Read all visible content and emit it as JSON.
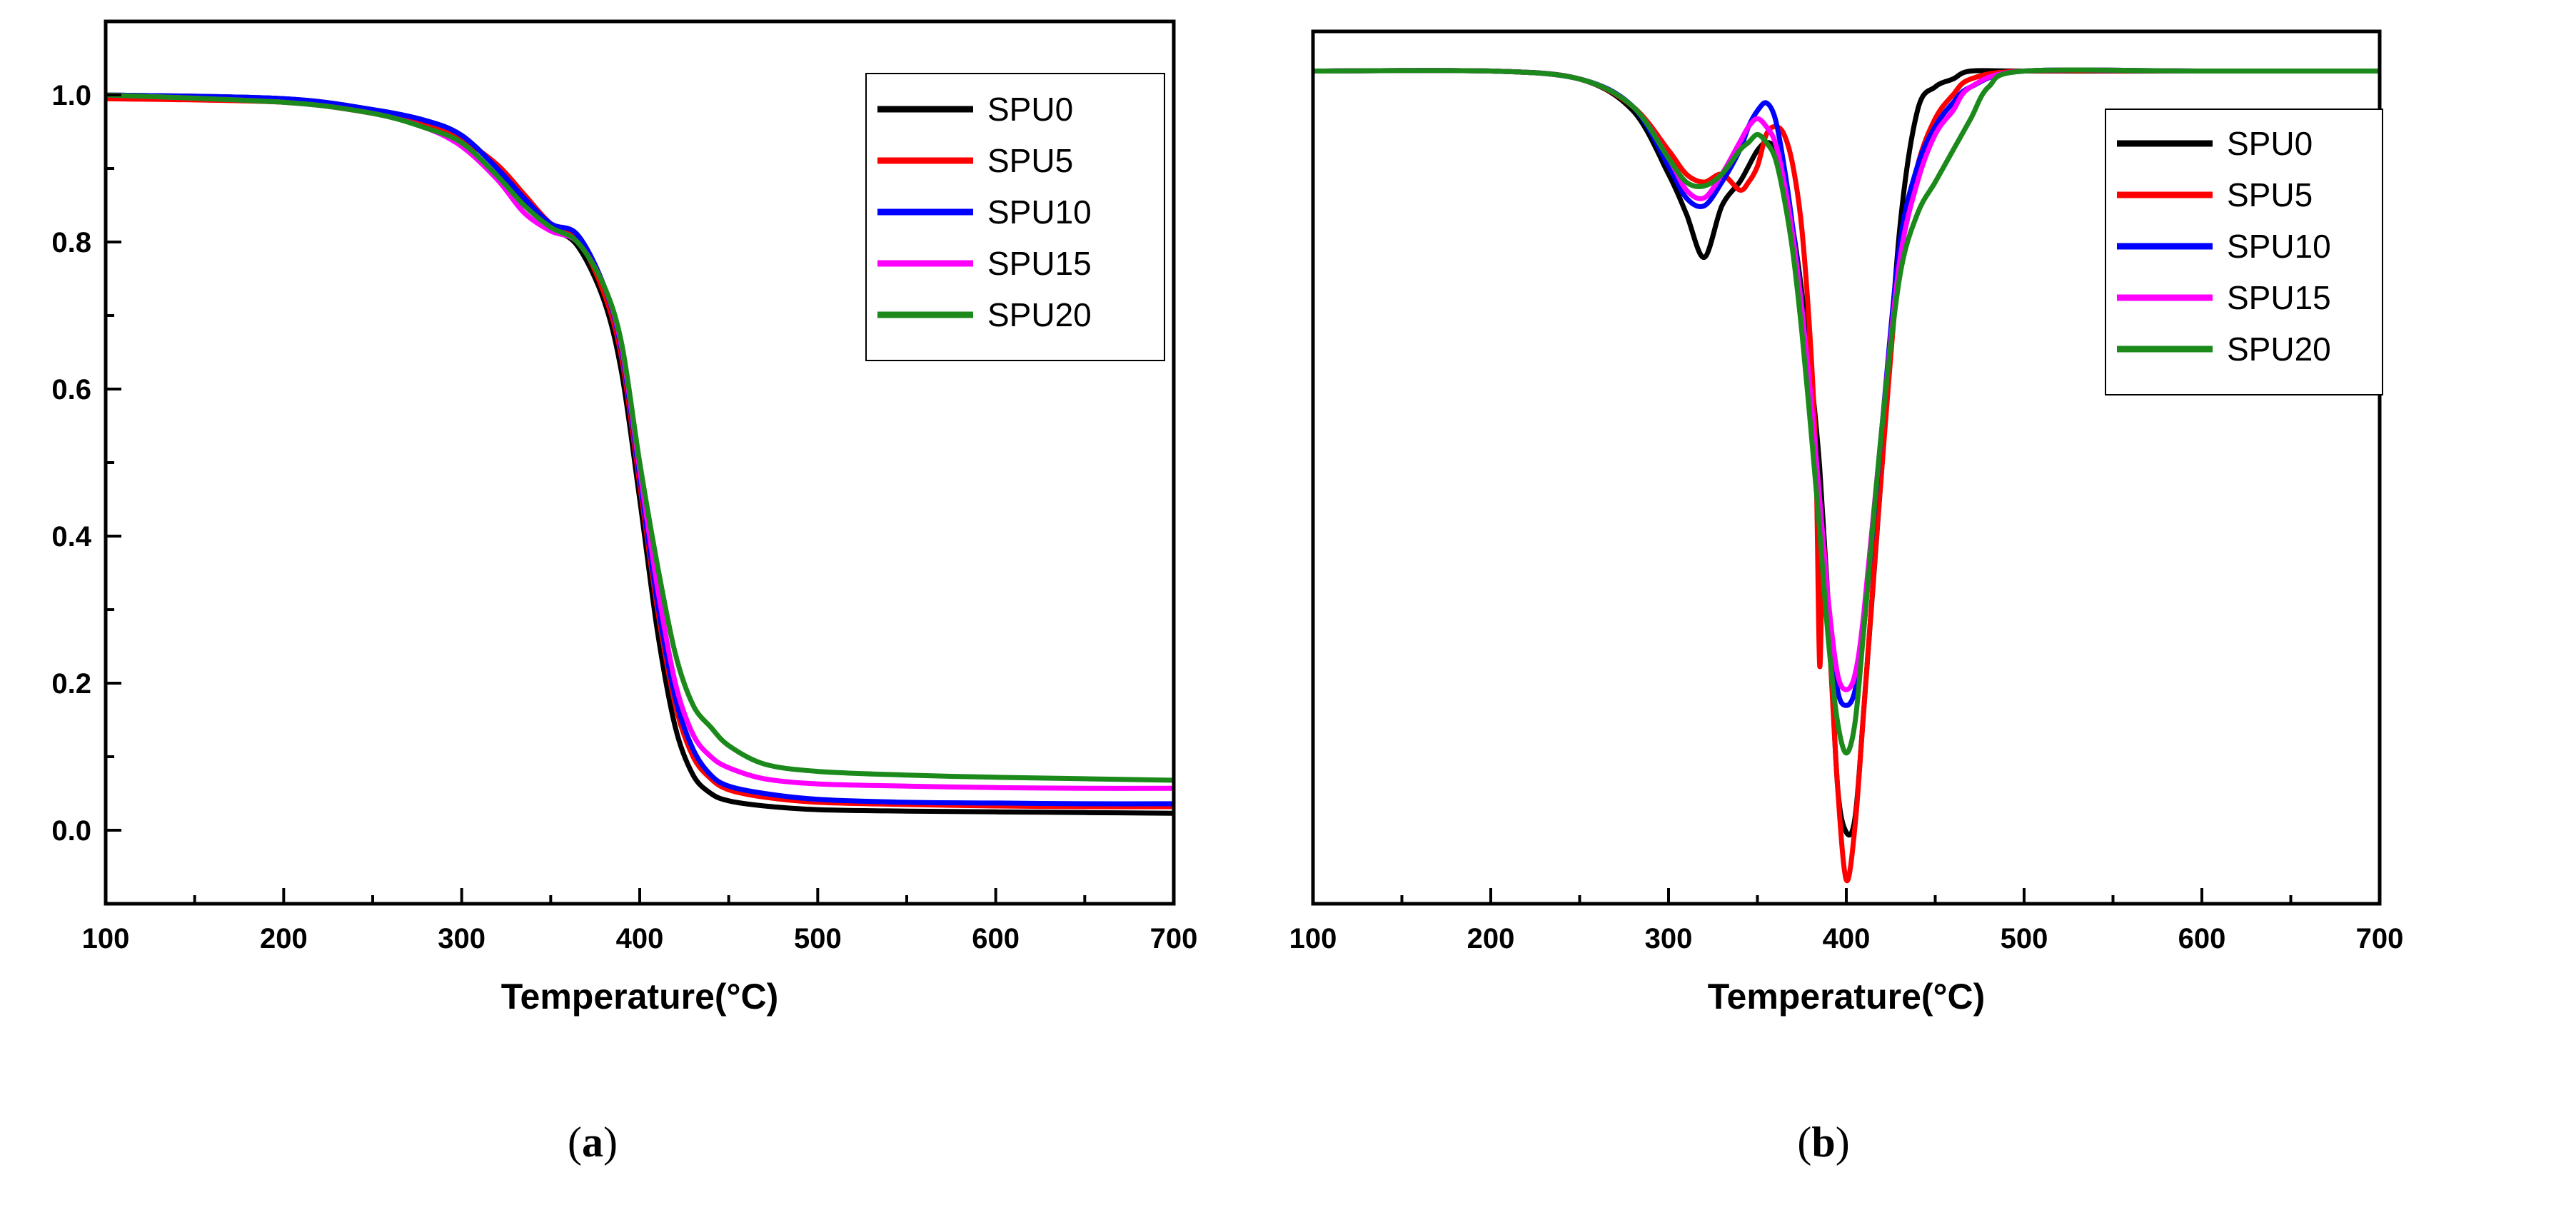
{
  "chart_data": [
    {
      "panel": "a",
      "caption": {
        "open": "(",
        "letter": "a",
        "close": ")"
      },
      "type": "line",
      "title": "",
      "xlabel": "Temperature(°C)",
      "ylabel": "",
      "xlim": [
        100,
        700
      ],
      "ylim": [
        -0.1,
        1.1
      ],
      "xticks": [
        100,
        200,
        300,
        400,
        500,
        600,
        700
      ],
      "yticks": [
        0.0,
        0.2,
        0.4,
        0.6,
        0.8,
        1.0
      ],
      "ytick_labels": [
        "0.0",
        "0.2",
        "0.4",
        "0.6",
        "0.8",
        "1.0"
      ],
      "show_yticks": true,
      "grid": false,
      "legend_position": "top-right",
      "series": [
        {
          "name": "SPU0",
          "color": "#000000",
          "x": [
            100,
            200,
            250,
            280,
            300,
            320,
            335,
            350,
            365,
            380,
            390,
            400,
            410,
            420,
            430,
            440,
            450,
            470,
            500,
            550,
            600,
            650,
            700
          ],
          "y": [
            1.0,
            0.995,
            0.98,
            0.965,
            0.945,
            0.9,
            0.855,
            0.82,
            0.795,
            0.72,
            0.62,
            0.45,
            0.27,
            0.14,
            0.075,
            0.05,
            0.04,
            0.033,
            0.028,
            0.026,
            0.025,
            0.024,
            0.023
          ]
        },
        {
          "name": "SPU5",
          "color": "#ff0000",
          "x": [
            100,
            200,
            250,
            280,
            300,
            320,
            335,
            350,
            365,
            380,
            390,
            400,
            410,
            420,
            430,
            440,
            450,
            470,
            500,
            550,
            600,
            650,
            700
          ],
          "y": [
            0.995,
            0.99,
            0.975,
            0.96,
            0.94,
            0.905,
            0.865,
            0.825,
            0.805,
            0.73,
            0.64,
            0.47,
            0.3,
            0.17,
            0.1,
            0.07,
            0.055,
            0.045,
            0.038,
            0.035,
            0.033,
            0.032,
            0.032
          ]
        },
        {
          "name": "SPU10",
          "color": "#0000ff",
          "x": [
            100,
            200,
            250,
            280,
            300,
            320,
            335,
            350,
            365,
            380,
            390,
            400,
            410,
            420,
            430,
            440,
            450,
            470,
            500,
            550,
            600,
            650,
            700
          ],
          "y": [
            1.0,
            0.995,
            0.98,
            0.965,
            0.945,
            0.9,
            0.86,
            0.825,
            0.81,
            0.74,
            0.65,
            0.48,
            0.31,
            0.18,
            0.11,
            0.075,
            0.06,
            0.05,
            0.042,
            0.038,
            0.037,
            0.036,
            0.036
          ]
        },
        {
          "name": "SPU15",
          "color": "#ff00ff",
          "x": [
            100,
            200,
            250,
            280,
            300,
            320,
            335,
            350,
            365,
            380,
            390,
            400,
            410,
            420,
            430,
            440,
            450,
            470,
            500,
            550,
            600,
            650,
            700
          ],
          "y": [
            1.0,
            0.99,
            0.975,
            0.955,
            0.93,
            0.885,
            0.84,
            0.815,
            0.8,
            0.74,
            0.655,
            0.49,
            0.33,
            0.2,
            0.13,
            0.1,
            0.085,
            0.07,
            0.063,
            0.06,
            0.058,
            0.057,
            0.057
          ]
        },
        {
          "name": "SPU20",
          "color": "#1b8a1b",
          "x": [
            100,
            200,
            250,
            280,
            300,
            320,
            335,
            350,
            365,
            380,
            390,
            400,
            410,
            420,
            430,
            440,
            450,
            470,
            500,
            550,
            600,
            650,
            700
          ],
          "y": [
            1.0,
            0.99,
            0.975,
            0.955,
            0.935,
            0.89,
            0.85,
            0.82,
            0.8,
            0.74,
            0.66,
            0.5,
            0.36,
            0.24,
            0.17,
            0.14,
            0.115,
            0.09,
            0.08,
            0.075,
            0.072,
            0.07,
            0.068
          ]
        }
      ]
    },
    {
      "panel": "b",
      "caption": {
        "open": "(",
        "letter": "b",
        "close": ")"
      },
      "type": "line",
      "title": "",
      "xlabel": "Temperature(°C)",
      "ylabel": "",
      "xlim": [
        100,
        700
      ],
      "ylim": [
        -0.05,
        1.05
      ],
      "xticks": [
        100,
        200,
        300,
        400,
        500,
        600,
        700
      ],
      "yticks": [],
      "ytick_labels": [],
      "show_yticks": false,
      "grid": false,
      "legend_position": "top-right",
      "series": [
        {
          "name": "SPU0",
          "color": "#000000",
          "x": [
            100,
            200,
            250,
            280,
            300,
            310,
            320,
            330,
            340,
            345,
            350,
            355,
            360,
            365,
            370,
            375,
            380,
            385,
            390,
            395,
            400,
            405,
            410,
            420,
            430,
            440,
            450,
            460,
            470,
            500,
            600,
            700
          ],
          "y": [
            1.0,
            1.0,
            0.99,
            0.95,
            0.87,
            0.82,
            0.765,
            0.83,
            0.86,
            0.88,
            0.9,
            0.91,
            0.9,
            0.85,
            0.8,
            0.72,
            0.62,
            0.5,
            0.32,
            0.1,
            0.04,
            0.06,
            0.2,
            0.5,
            0.8,
            0.95,
            0.98,
            0.99,
            1.0,
            1.0,
            1.0,
            1.0
          ]
        },
        {
          "name": "SPU5",
          "color": "#ff0000",
          "x": [
            100,
            200,
            250,
            280,
            300,
            310,
            320,
            330,
            340,
            345,
            350,
            355,
            360,
            365,
            370,
            375,
            380,
            383,
            385,
            387,
            390,
            395,
            400,
            405,
            410,
            420,
            430,
            440,
            450,
            460,
            470,
            500,
            600,
            700
          ],
          "y": [
            1.0,
            1.0,
            0.99,
            0.955,
            0.9,
            0.87,
            0.86,
            0.87,
            0.85,
            0.86,
            0.88,
            0.92,
            0.93,
            0.92,
            0.88,
            0.8,
            0.65,
            0.5,
            0.25,
            0.4,
            0.3,
            0.1,
            -0.02,
            0.05,
            0.2,
            0.5,
            0.76,
            0.88,
            0.94,
            0.97,
            0.99,
            1.0,
            1.0,
            1.0
          ]
        },
        {
          "name": "SPU10",
          "color": "#0000ff",
          "x": [
            100,
            200,
            250,
            280,
            300,
            310,
            320,
            330,
            340,
            345,
            350,
            355,
            360,
            365,
            370,
            375,
            380,
            385,
            390,
            395,
            400,
            405,
            410,
            420,
            430,
            440,
            450,
            460,
            470,
            500,
            600,
            700
          ],
          "y": [
            1.0,
            1.0,
            0.99,
            0.955,
            0.88,
            0.84,
            0.83,
            0.86,
            0.9,
            0.93,
            0.95,
            0.96,
            0.94,
            0.88,
            0.8,
            0.7,
            0.58,
            0.45,
            0.32,
            0.22,
            0.2,
            0.22,
            0.3,
            0.55,
            0.78,
            0.88,
            0.93,
            0.96,
            0.98,
            1.0,
            1.0,
            1.0
          ]
        },
        {
          "name": "SPU15",
          "color": "#ff00ff",
          "x": [
            100,
            200,
            250,
            280,
            300,
            310,
            320,
            330,
            340,
            345,
            350,
            355,
            360,
            365,
            370,
            375,
            380,
            385,
            390,
            395,
            400,
            405,
            410,
            420,
            430,
            440,
            450,
            460,
            470,
            500,
            600,
            700
          ],
          "y": [
            1.0,
            1.0,
            0.99,
            0.955,
            0.89,
            0.85,
            0.84,
            0.87,
            0.91,
            0.93,
            0.94,
            0.93,
            0.91,
            0.86,
            0.79,
            0.7,
            0.59,
            0.46,
            0.33,
            0.24,
            0.22,
            0.24,
            0.32,
            0.55,
            0.76,
            0.86,
            0.92,
            0.95,
            0.98,
            1.0,
            1.0,
            1.0
          ]
        },
        {
          "name": "SPU20",
          "color": "#1b8a1b",
          "x": [
            100,
            200,
            250,
            280,
            300,
            310,
            320,
            330,
            340,
            345,
            350,
            355,
            360,
            365,
            370,
            375,
            380,
            385,
            390,
            395,
            400,
            405,
            410,
            420,
            430,
            440,
            450,
            460,
            470,
            480,
            500,
            600,
            700
          ],
          "y": [
            1.0,
            1.0,
            0.99,
            0.955,
            0.89,
            0.86,
            0.855,
            0.87,
            0.9,
            0.91,
            0.92,
            0.91,
            0.89,
            0.84,
            0.77,
            0.67,
            0.55,
            0.42,
            0.28,
            0.18,
            0.14,
            0.18,
            0.3,
            0.55,
            0.74,
            0.82,
            0.86,
            0.9,
            0.94,
            0.98,
            1.0,
            1.0,
            1.0
          ]
        }
      ]
    }
  ]
}
